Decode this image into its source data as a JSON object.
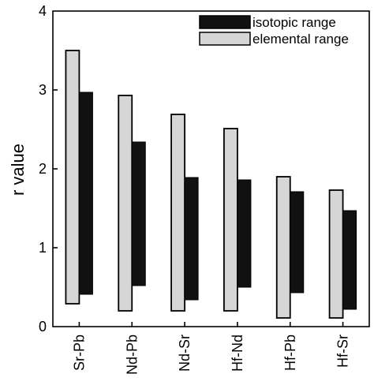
{
  "chart_data": {
    "type": "range-bar",
    "ylabel": "r  value",
    "ylim": [
      0,
      4
    ],
    "yticks": [
      "0",
      "1",
      "2",
      "3",
      "4"
    ],
    "categories": [
      "Sr-Pb",
      "Nd-Pb",
      "Nd-Sr",
      "Hf-Nd",
      "Hf-Pb",
      "Hf-Sr"
    ],
    "series": [
      {
        "name": "elemental range",
        "color": "#d6d6d6",
        "ranges": [
          [
            0.29,
            3.5
          ],
          [
            0.2,
            2.93
          ],
          [
            0.2,
            2.69
          ],
          [
            0.2,
            2.51
          ],
          [
            0.11,
            1.9
          ],
          [
            0.11,
            1.73
          ]
        ]
      },
      {
        "name": "isotopic range",
        "color": "#111111",
        "ranges": [
          [
            0.41,
            2.97
          ],
          [
            0.52,
            2.34
          ],
          [
            0.34,
            1.89
          ],
          [
            0.5,
            1.86
          ],
          [
            0.43,
            1.71
          ],
          [
            0.22,
            1.47
          ]
        ]
      }
    ],
    "legend_order": [
      "isotopic range",
      "elemental range"
    ],
    "legend_position": "top-right"
  }
}
